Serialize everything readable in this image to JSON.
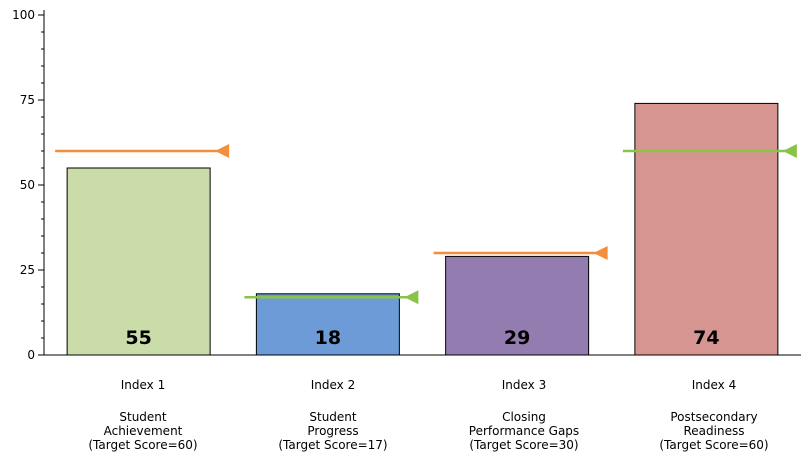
{
  "chart_data": {
    "type": "bar",
    "title": "",
    "xlabel": "",
    "ylabel": "",
    "ylim": [
      0,
      100
    ],
    "yticks": [
      0,
      25,
      50,
      75,
      100
    ],
    "grid": false,
    "categories": [
      {
        "index": "Index 1",
        "line1": "Student",
        "line2": "Achievement",
        "line3": "(Target Score=60)"
      },
      {
        "index": "Index 2",
        "line1": "Student",
        "line2": "Progress",
        "line3": "(Target Score=17)"
      },
      {
        "index": "Index 3",
        "line1": "Closing",
        "line2": "Performance Gaps",
        "line3": "(Target Score=30)"
      },
      {
        "index": "Index 4",
        "line1": "Postsecondary",
        "line2": "Readiness",
        "line3": "(Target Score=60)"
      }
    ],
    "values": [
      55,
      18,
      29,
      74
    ],
    "data_labels": [
      "55",
      "18",
      "29",
      "74"
    ],
    "bar_colors": [
      "#cadca7",
      "#6c9bd8",
      "#937db0",
      "#d69590"
    ],
    "targets": [
      60,
      17,
      30,
      60
    ],
    "target_marker_colors": [
      "#f28e3c",
      "#8bc34a",
      "#f28e3c",
      "#8bc34a"
    ]
  }
}
